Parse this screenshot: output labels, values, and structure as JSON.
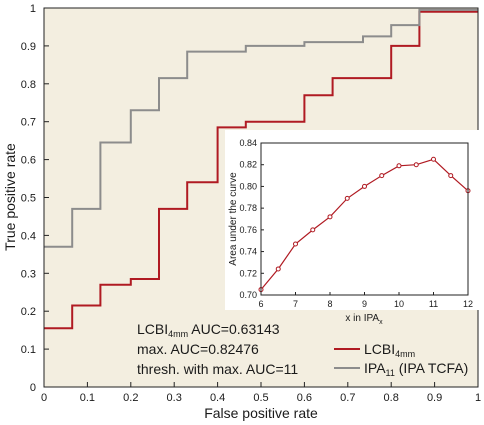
{
  "colors": {
    "plot_bg": "#f3eee0",
    "inset_bg": "#ffffff",
    "lcbi": "#b01a22",
    "ipa": "#8c8c8c",
    "axis": "#222222"
  },
  "chart_data": [
    {
      "type": "line",
      "title": "",
      "xlabel": "False positive rate",
      "ylabel": "True positive rate",
      "xlim": [
        0,
        1
      ],
      "ylim": [
        0,
        1
      ],
      "x_ticks": [
        "0",
        "0.1",
        "0.2",
        "0.3",
        "0.4",
        "0.5",
        "0.6",
        "0.7",
        "0.8",
        "0.9",
        "1"
      ],
      "y_ticks": [
        "0",
        "0.1",
        "0.2",
        "0.3",
        "0.4",
        "0.5",
        "0.6",
        "0.7",
        "0.8",
        "0.9",
        "1"
      ],
      "grid": false,
      "legend_position": "bottom-right",
      "series": [
        {
          "name_main": "LCBI",
          "name_sub": "4mm",
          "name_rest": "",
          "color": "#b01a22",
          "step": true,
          "x": [
            0,
            0.065,
            0.065,
            0.13,
            0.13,
            0.2,
            0.2,
            0.265,
            0.265,
            0.33,
            0.33,
            0.4,
            0.4,
            0.465,
            0.465,
            0.6,
            0.6,
            0.665,
            0.665,
            0.8,
            0.8,
            0.865,
            0.865,
            1
          ],
          "y": [
            0.155,
            0.155,
            0.215,
            0.215,
            0.27,
            0.27,
            0.285,
            0.285,
            0.47,
            0.47,
            0.54,
            0.54,
            0.685,
            0.685,
            0.7,
            0.7,
            0.77,
            0.77,
            0.815,
            0.815,
            0.9,
            0.9,
            0.99,
            0.99
          ]
        },
        {
          "name_main": "IPA",
          "name_sub": "11",
          "name_rest": " (IPA TCFA)",
          "color": "#8c8c8c",
          "step": true,
          "x": [
            0,
            0.065,
            0.065,
            0.13,
            0.13,
            0.2,
            0.2,
            0.265,
            0.265,
            0.33,
            0.33,
            0.465,
            0.465,
            0.6,
            0.6,
            0.735,
            0.735,
            0.8,
            0.8,
            0.865,
            0.865,
            1
          ],
          "y": [
            0.37,
            0.37,
            0.47,
            0.47,
            0.645,
            0.645,
            0.73,
            0.73,
            0.815,
            0.815,
            0.885,
            0.885,
            0.9,
            0.9,
            0.91,
            0.91,
            0.925,
            0.925,
            0.955,
            0.955,
            0.995,
            0.995
          ]
        }
      ],
      "annotation": {
        "line1_main": "LCBI",
        "line1_sub": "4mm",
        "line1_rest": " AUC=0.63143",
        "line2": "max. AUC=0.82476",
        "line3": "thresh. with max. AUC=11"
      }
    },
    {
      "type": "line",
      "title": "",
      "xlabel_main": "x in IPA",
      "xlabel_sub": "x",
      "ylabel": "Area under the curve",
      "xlim": [
        6,
        12
      ],
      "ylim": [
        0.7,
        0.84
      ],
      "x_ticks": [
        "6",
        "7",
        "8",
        "9",
        "10",
        "11",
        "12"
      ],
      "y_ticks": [
        "0.70",
        "0.72",
        "0.74",
        "0.76",
        "0.78",
        "0.80",
        "0.82",
        "0.84"
      ],
      "series": [
        {
          "color": "#b01a22",
          "markers": true,
          "x": [
            6,
            6.5,
            7,
            7.5,
            8,
            8.5,
            9,
            9.5,
            10,
            10.5,
            11,
            11.5,
            12
          ],
          "y": [
            0.705,
            0.724,
            0.747,
            0.76,
            0.772,
            0.789,
            0.8,
            0.81,
            0.819,
            0.82,
            0.825,
            0.81,
            0.796
          ]
        }
      ]
    }
  ]
}
